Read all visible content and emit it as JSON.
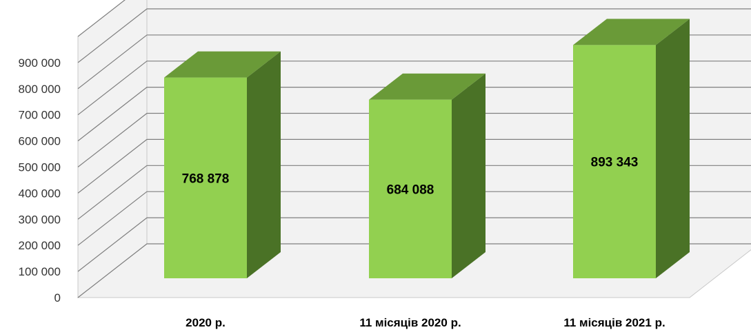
{
  "chart_data": {
    "type": "bar",
    "style": "3d-column",
    "categories": [
      "2020 р.",
      "11 місяців 2020 р.",
      "11 місяців 2021 р."
    ],
    "values": [
      768878,
      684088,
      893343
    ],
    "data_labels": [
      "768 878",
      "684 088",
      "893 343"
    ],
    "y_ticks": [
      0,
      100000,
      200000,
      300000,
      400000,
      500000,
      600000,
      700000,
      800000,
      900000
    ],
    "y_tick_labels": [
      "0",
      "100 000",
      "200 000",
      "300 000",
      "400 000",
      "500 000",
      "600 000",
      "700 000",
      "800 000",
      "900 000"
    ],
    "ylim": [
      0,
      1000000
    ],
    "grid": true,
    "legend": "none",
    "colors": {
      "bar_front": "#92d050",
      "bar_top": "#6a9a38",
      "bar_side": "#4a7226",
      "wall": "#f2f2f2",
      "gridline": "#7f7f7f"
    }
  }
}
